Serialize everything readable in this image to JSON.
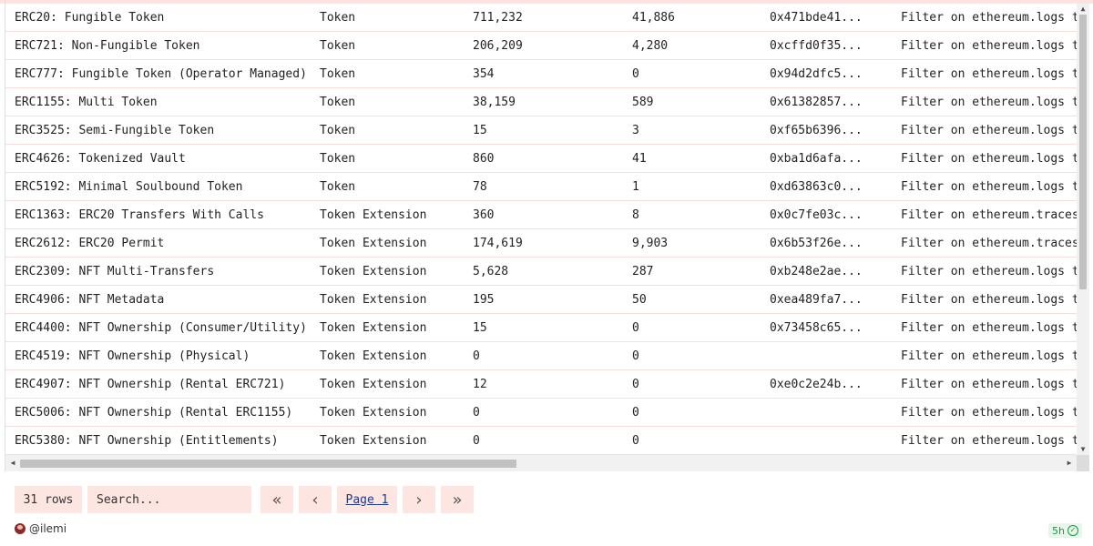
{
  "table": {
    "rows": [
      [
        "ERC20: Fungible Token",
        "Token",
        "711,232",
        "41,886",
        "0x471bde41...",
        "Filter on ethereum.logs t"
      ],
      [
        "ERC721: Non-Fungible Token",
        "Token",
        "206,209",
        "4,280",
        "0xcffd0f35...",
        "Filter on ethereum.logs t"
      ],
      [
        "ERC777: Fungible Token (Operator Managed)",
        "Token",
        "354",
        "0",
        "0x94d2dfc5...",
        "Filter on ethereum.logs t"
      ],
      [
        "ERC1155: Multi Token",
        "Token",
        "38,159",
        "589",
        "0x61382857...",
        "Filter on ethereum.logs t"
      ],
      [
        "ERC3525: Semi-Fungible Token",
        "Token",
        "15",
        "3",
        "0xf65b6396...",
        "Filter on ethereum.logs t"
      ],
      [
        "ERC4626: Tokenized Vault",
        "Token",
        "860",
        "41",
        "0xba1d6afa...",
        "Filter on ethereum.logs t"
      ],
      [
        "ERC5192: Minimal Soulbound Token",
        "Token",
        "78",
        "1",
        "0xd63863c0...",
        "Filter on ethereum.logs t"
      ],
      [
        "ERC1363: ERC20 Transfers With Calls",
        "Token Extension",
        "360",
        "8",
        "0x0c7fe03c...",
        "Filter on ethereum.traces"
      ],
      [
        "ERC2612: ERC20 Permit",
        "Token Extension",
        "174,619",
        "9,903",
        "0x6b53f26e...",
        "Filter on ethereum.traces"
      ],
      [
        "ERC2309: NFT Multi-Transfers",
        "Token Extension",
        "5,628",
        "287",
        "0xb248e2ae...",
        "Filter on ethereum.logs t"
      ],
      [
        "ERC4906: NFT Metadata",
        "Token Extension",
        "195",
        "50",
        "0xea489fa7...",
        "Filter on ethereum.logs t"
      ],
      [
        "ERC4400: NFT Ownership (Consumer/Utility)",
        "Token Extension",
        "15",
        "0",
        "0x73458c65...",
        "Filter on ethereum.logs t"
      ],
      [
        "ERC4519: NFT Ownership (Physical)",
        "Token Extension",
        "0",
        "0",
        "",
        "Filter on ethereum.logs t"
      ],
      [
        "ERC4907: NFT Ownership (Rental ERC721)",
        "Token Extension",
        "12",
        "0",
        "0xe0c2e24b...",
        "Filter on ethereum.logs t"
      ],
      [
        "ERC5006: NFT Ownership (Rental ERC1155)",
        "Token Extension",
        "0",
        "0",
        "",
        "Filter on ethereum.logs t"
      ],
      [
        "ERC5380: NFT Ownership (Entitlements)",
        "Token Extension",
        "0",
        "0",
        "",
        "Filter on ethereum.logs t"
      ]
    ]
  },
  "pager": {
    "rows_count": "31 rows",
    "search_placeholder": "Search...",
    "first_icon": "«",
    "prev_icon": "‹",
    "page_label": "Page 1",
    "next_icon": "›",
    "last_icon": "»"
  },
  "footer": {
    "author": "@ilemi",
    "age": "5h"
  },
  "colors": {
    "accent_bg": "#fde5e2",
    "success": "#1a9a3c",
    "link": "#1f3a8a"
  }
}
